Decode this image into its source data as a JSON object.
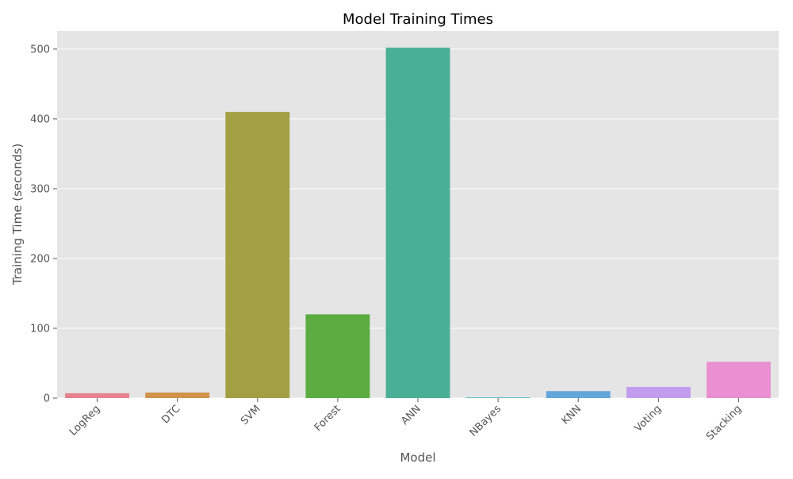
{
  "chart_data": {
    "type": "bar",
    "title": "Model Training Times",
    "xlabel": "Model",
    "ylabel": "Training Time (seconds)",
    "categories": [
      "LogReg",
      "DTC",
      "SVM",
      "Forest",
      "ANN",
      "NBayes",
      "KNN",
      "Voting",
      "Stacking"
    ],
    "values": [
      7,
      8,
      410,
      120,
      502,
      1,
      10,
      16,
      52
    ],
    "ylim": [
      0,
      526
    ],
    "yticks": [
      0,
      100,
      200,
      300,
      400,
      500
    ],
    "grid": true,
    "legend": "none",
    "colors": [
      "#e8828f",
      "#d0934a",
      "#a2a043",
      "#5bad42",
      "#4aaf97",
      "#4cb6b8",
      "#62a6dc",
      "#c29ded",
      "#ea8fd1"
    ],
    "background_color": "#e5e5e5",
    "grid_color": "#ffffff",
    "text_color": "#555555"
  }
}
